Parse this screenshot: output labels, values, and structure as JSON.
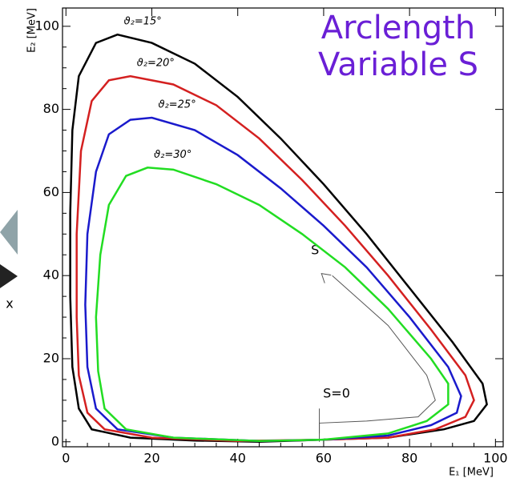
{
  "chart_data": {
    "type": "line",
    "title": "Arclength Variable S",
    "x_label": "E₁ [MeV]",
    "y_label": "E₂ [MeV]",
    "side_label": "x",
    "annotations": [
      "S",
      "S=0"
    ],
    "xlim": [
      -0.8,
      101.8
    ],
    "ylim": [
      -1.2,
      104.4
    ],
    "xticks": [
      0,
      20,
      40,
      60,
      80,
      100
    ],
    "yticks": [
      0,
      20,
      40,
      60,
      80,
      100
    ],
    "series": [
      {
        "name": "ϑ₂=15°",
        "color": "#000000",
        "x": [
          60,
          75,
          88,
          95,
          98,
          97,
          90,
          80,
          70,
          60,
          50,
          40,
          30,
          20,
          12,
          7,
          3,
          1.5,
          1,
          1,
          1.5,
          3,
          6,
          15,
          30,
          45,
          60
        ],
        "values": [
          0.5,
          1,
          3,
          5,
          9,
          14,
          24,
          37,
          50,
          62,
          73,
          83,
          91,
          96,
          98,
          96,
          88,
          75,
          55,
          35,
          18,
          8,
          3,
          1,
          0.3,
          0,
          0.5
        ]
      },
      {
        "name": "ϑ₂=20°",
        "color": "#d42020",
        "x": [
          60,
          75,
          86,
          93,
          95,
          93,
          85,
          75,
          65,
          55,
          45,
          35,
          25,
          15,
          10,
          6,
          3.5,
          2.5,
          2.5,
          3,
          5,
          9,
          20,
          40,
          60
        ],
        "values": [
          0.5,
          1,
          3,
          6,
          10,
          16,
          27,
          40,
          52,
          63,
          73,
          81,
          86,
          88,
          87,
          82,
          70,
          50,
          30,
          16,
          7,
          3,
          1,
          0.2,
          0.5
        ]
      },
      {
        "name": "ϑ₂=25°",
        "color": "#1a1acc",
        "x": [
          60,
          75,
          85,
          91,
          92,
          89,
          80,
          70,
          60,
          50,
          40,
          30,
          20,
          15,
          10,
          7,
          5,
          4.5,
          5,
          7,
          12,
          25,
          45,
          60
        ],
        "values": [
          0.5,
          1.5,
          4,
          7,
          11,
          18,
          30,
          42,
          52,
          61,
          69,
          75,
          78,
          77.5,
          74,
          65,
          50,
          33,
          18,
          8,
          3,
          1,
          0.2,
          0.5
        ]
      },
      {
        "name": "ϑ₂=30°",
        "color": "#22dd22",
        "x": [
          60,
          75,
          84,
          89,
          89,
          85,
          75,
          65,
          55,
          45,
          35,
          25,
          19,
          14,
          10,
          8,
          7,
          7.5,
          9,
          14,
          25,
          45,
          60
        ],
        "values": [
          0.5,
          2,
          5,
          9,
          14,
          20,
          32,
          42,
          50,
          57,
          62,
          65.5,
          66,
          64,
          57,
          45,
          30,
          17,
          8,
          3,
          1,
          0.2,
          0.5
        ]
      }
    ]
  }
}
